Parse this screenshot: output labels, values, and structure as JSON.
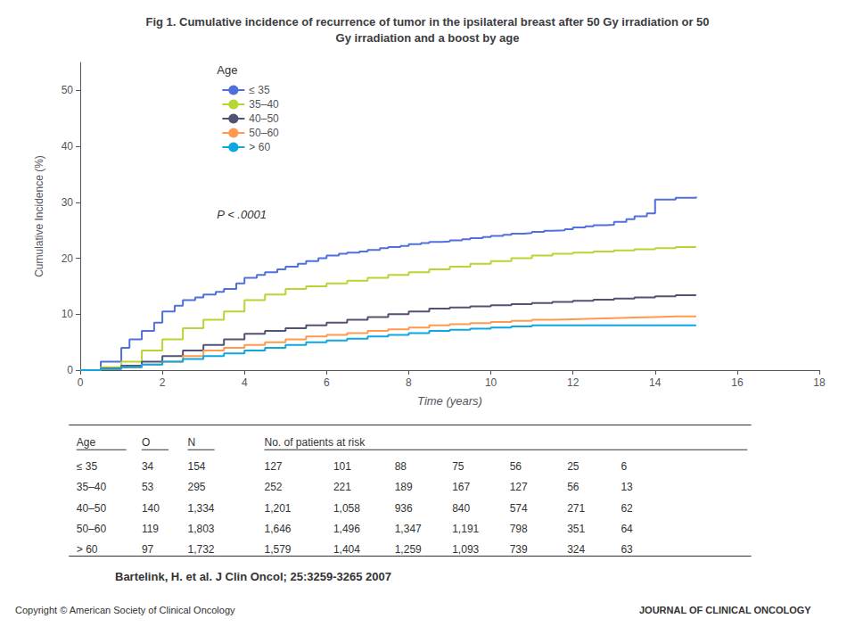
{
  "chart_data": {
    "type": "line",
    "line_style": "step",
    "title": "Fig 1. Cumulative incidence of recurrence of tumor in the ipsilateral breast after 50 Gy irradiation or 50\nGy irradiation and a boost by age",
    "xlabel": "Time (years)",
    "ylabel": "Cumulative Incidence (%)",
    "xlim": [
      0,
      18
    ],
    "ylim": [
      0,
      55
    ],
    "xticks": [
      0,
      2,
      4,
      6,
      8,
      10,
      12,
      14,
      16,
      18
    ],
    "yticks": [
      0,
      10,
      20,
      30,
      40,
      50
    ],
    "grid": false,
    "legend": "upper left",
    "legend_title": "Age",
    "annotations": [
      {
        "text": "P < .0001"
      }
    ],
    "series": [
      {
        "name": "≤ 35",
        "x": [
          0,
          0.5,
          1.0,
          1.2,
          1.5,
          1.8,
          2.0,
          2.3,
          2.5,
          2.8,
          3.0,
          3.3,
          3.5,
          3.8,
          4.0,
          4.3,
          4.5,
          4.8,
          5.0,
          5.3,
          5.5,
          5.8,
          6.0,
          6.3,
          6.5,
          6.8,
          7.0,
          7.3,
          7.5,
          7.8,
          8.0,
          8.3,
          8.5,
          8.8,
          9.0,
          9.3,
          9.5,
          9.8,
          10.0,
          10.3,
          10.5,
          10.8,
          11.0,
          11.3,
          11.5,
          11.8,
          12.0,
          12.3,
          12.5,
          12.8,
          13.0,
          13.3,
          13.5,
          13.8,
          14.0,
          14.5,
          15.0
        ],
        "values": [
          0,
          1.5,
          4.0,
          5.5,
          7.0,
          8.5,
          10.5,
          11.5,
          12.5,
          13.0,
          13.5,
          14.0,
          14.5,
          15.5,
          16.5,
          17.0,
          17.5,
          18.0,
          18.5,
          19.0,
          19.5,
          20.0,
          20.5,
          20.8,
          21.0,
          21.2,
          21.5,
          21.8,
          22.0,
          22.2,
          22.5,
          22.7,
          22.9,
          23.0,
          23.2,
          23.4,
          23.6,
          23.8,
          24.0,
          24.2,
          24.4,
          24.5,
          24.7,
          24.9,
          25.0,
          25.2,
          25.5,
          25.7,
          25.9,
          26.0,
          26.5,
          27.0,
          27.5,
          28.0,
          30.5,
          30.8,
          31.0
        ]
      },
      {
        "name": "35–40",
        "x": [
          0,
          0.5,
          1.0,
          1.5,
          2.0,
          2.5,
          3.0,
          3.5,
          4.0,
          4.5,
          5.0,
          5.5,
          6.0,
          6.5,
          7.0,
          7.5,
          8.0,
          8.5,
          9.0,
          9.5,
          10.0,
          10.5,
          11.0,
          11.5,
          12.0,
          12.5,
          13.0,
          13.5,
          14.0,
          14.5,
          15.0
        ],
        "values": [
          0,
          0.5,
          1.5,
          3.5,
          5.5,
          7.5,
          9.0,
          10.5,
          12.5,
          13.5,
          14.5,
          15.0,
          15.5,
          16.0,
          16.5,
          17.0,
          17.5,
          18.0,
          18.5,
          19.0,
          19.5,
          20.0,
          20.5,
          20.8,
          21.0,
          21.2,
          21.4,
          21.6,
          21.8,
          22.0,
          22.0
        ]
      },
      {
        "name": "40–50",
        "x": [
          0,
          0.5,
          1.0,
          1.5,
          2.0,
          2.5,
          3.0,
          3.5,
          4.0,
          4.5,
          5.0,
          5.5,
          6.0,
          6.5,
          7.0,
          7.5,
          8.0,
          8.5,
          9.0,
          9.5,
          10.0,
          10.5,
          11.0,
          11.5,
          12.0,
          12.5,
          13.0,
          13.5,
          14.0,
          14.5,
          15.0
        ],
        "values": [
          0,
          0.3,
          0.8,
          1.5,
          2.5,
          3.5,
          4.5,
          5.5,
          6.5,
          7.0,
          7.5,
          8.0,
          8.5,
          9.0,
          9.5,
          10.0,
          10.5,
          11.0,
          11.2,
          11.4,
          11.6,
          11.8,
          12.0,
          12.2,
          12.4,
          12.6,
          12.8,
          13.0,
          13.2,
          13.4,
          13.5
        ]
      },
      {
        "name": "50–60",
        "x": [
          0,
          0.5,
          1.0,
          1.5,
          2.0,
          2.5,
          3.0,
          3.5,
          4.0,
          4.5,
          5.0,
          5.5,
          6.0,
          6.5,
          7.0,
          7.5,
          8.0,
          8.5,
          9.0,
          9.5,
          10.0,
          10.5,
          11.0,
          11.5,
          12.0,
          12.5,
          13.0,
          13.5,
          14.0,
          14.5,
          15.0
        ],
        "values": [
          0,
          0.2,
          0.5,
          1.0,
          1.5,
          2.5,
          3.5,
          4.0,
          4.5,
          5.0,
          5.5,
          6.0,
          6.3,
          6.6,
          7.0,
          7.3,
          7.6,
          8.0,
          8.2,
          8.4,
          8.6,
          8.8,
          9.0,
          9.1,
          9.2,
          9.3,
          9.4,
          9.5,
          9.6,
          9.6,
          9.6
        ]
      },
      {
        "name": "> 60",
        "x": [
          0,
          0.5,
          1.0,
          1.5,
          2.0,
          2.5,
          3.0,
          3.5,
          4.0,
          4.5,
          5.0,
          5.5,
          6.0,
          6.5,
          7.0,
          7.5,
          8.0,
          8.5,
          9.0,
          9.5,
          10.0,
          10.5,
          11.0,
          11.5,
          12.0,
          12.5,
          13.0,
          13.5,
          14.0,
          14.5,
          15.0
        ],
        "values": [
          0,
          0.2,
          0.5,
          1.0,
          1.5,
          2.0,
          2.5,
          3.0,
          3.5,
          4.0,
          4.5,
          5.0,
          5.3,
          5.6,
          6.0,
          6.3,
          6.6,
          7.0,
          7.2,
          7.4,
          7.6,
          7.8,
          8.0,
          8.0,
          8.0,
          8.0,
          8.0,
          8.0,
          8.0,
          8.0,
          8.0
        ]
      }
    ],
    "table": {
      "header": [
        "Age",
        "O",
        "N",
        "No. of patients at risk"
      ],
      "rows": [
        [
          "≤ 35",
          "34",
          "154",
          "127",
          "101",
          "88",
          "75",
          "56",
          "25",
          "6"
        ],
        [
          "35–40",
          "53",
          "295",
          "252",
          "221",
          "189",
          "167",
          "127",
          "56",
          "13"
        ],
        [
          "40–50",
          "140",
          "1,334",
          "1,201",
          "1,058",
          "936",
          "840",
          "574",
          "271",
          "62"
        ],
        [
          "50–60",
          "119",
          "1,803",
          "1,646",
          "1,496",
          "1,347",
          "1,191",
          "798",
          "351",
          "64"
        ],
        [
          "> 60",
          "97",
          "1,732",
          "1,579",
          "1,404",
          "1,259",
          "1,093",
          "739",
          "324",
          "63"
        ]
      ]
    },
    "citation": "Bartelink, H. et al. J Clin Oncol; 25:3259-3265 2007",
    "copyright": "Copyright © American Society of Clinical Oncology",
    "journal": "JOURNAL OF CLINICAL ONCOLOGY"
  }
}
